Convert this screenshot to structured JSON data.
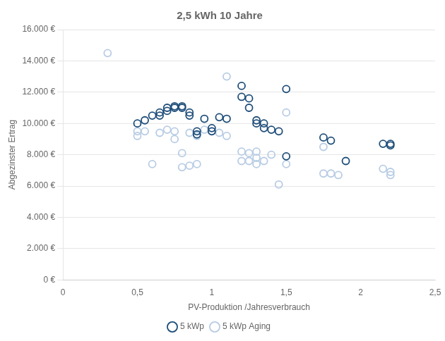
{
  "chart_data": {
    "type": "scatter",
    "title": "2,5 kWh 10 Jahre",
    "xlabel": "PV-Produktion /Jahresverbrauch",
    "ylabel": "Abgezinster Ertrag",
    "xlim": [
      0,
      2.5
    ],
    "ylim": [
      0,
      16000
    ],
    "xticks": [
      0,
      {
        "value": 0.5,
        "label": "0,5"
      },
      1,
      {
        "value": 1.5,
        "label": "1,5"
      },
      2,
      {
        "value": 2.5,
        "label": "2,5"
      }
    ],
    "yticks": [
      {
        "value": 0,
        "label": "0 €"
      },
      {
        "value": 2000,
        "label": "2.000 €"
      },
      {
        "value": 4000,
        "label": "4.000 €"
      },
      {
        "value": 6000,
        "label": "6.000 €"
      },
      {
        "value": 8000,
        "label": "8.000 €"
      },
      {
        "value": 10000,
        "label": "10.000 €"
      },
      {
        "value": 12000,
        "label": "12.000 €"
      },
      {
        "value": 14000,
        "label": "14.000 €"
      },
      {
        "value": 16000,
        "label": "16.000 €"
      }
    ],
    "grid": "y",
    "legend": "bottom",
    "marker": "circle",
    "series": [
      {
        "name": "5 kWp",
        "color": "#1F4E79",
        "x": [
          0.5,
          0.55,
          0.6,
          0.65,
          0.65,
          0.7,
          0.7,
          0.75,
          0.75,
          0.8,
          0.8,
          0.85,
          0.85,
          0.9,
          0.9,
          0.95,
          1.0,
          1.0,
          1.05,
          1.1,
          1.2,
          1.2,
          1.25,
          1.25,
          1.3,
          1.3,
          1.35,
          1.35,
          1.4,
          1.45,
          1.5,
          1.5,
          1.75,
          1.8,
          1.9,
          2.15,
          2.2,
          2.2
        ],
        "values": [
          10000,
          10200,
          10500,
          10500,
          10700,
          10800,
          11000,
          11000,
          11100,
          11000,
          11100,
          10500,
          10700,
          9500,
          9300,
          10300,
          9700,
          9500,
          10400,
          10300,
          12400,
          11700,
          11600,
          11000,
          10200,
          10000,
          10000,
          9700,
          9600,
          9500,
          12200,
          7900,
          9100,
          8900,
          7600,
          8700,
          8700,
          8600
        ]
      },
      {
        "name": "5 kWp Aging",
        "color": "#B8CCE4",
        "x": [
          0.3,
          0.5,
          0.5,
          0.55,
          0.6,
          0.65,
          0.7,
          0.75,
          0.75,
          0.8,
          0.8,
          0.85,
          0.85,
          0.9,
          0.9,
          0.95,
          1.0,
          1.05,
          1.1,
          1.1,
          1.2,
          1.2,
          1.25,
          1.25,
          1.3,
          1.3,
          1.3,
          1.35,
          1.4,
          1.45,
          1.5,
          1.5,
          1.75,
          1.75,
          1.8,
          1.85,
          2.15,
          2.2,
          2.2
        ],
        "values": [
          14500,
          9200,
          9500,
          9500,
          7400,
          9400,
          9600,
          9500,
          9000,
          8100,
          7200,
          9400,
          7300,
          9200,
          7400,
          9600,
          9500,
          9400,
          13000,
          9200,
          8200,
          7600,
          8100,
          7600,
          8200,
          7800,
          7400,
          7600,
          8000,
          6100,
          10700,
          7400,
          8500,
          6800,
          6800,
          6700,
          7100,
          6900,
          6700
        ]
      }
    ]
  }
}
